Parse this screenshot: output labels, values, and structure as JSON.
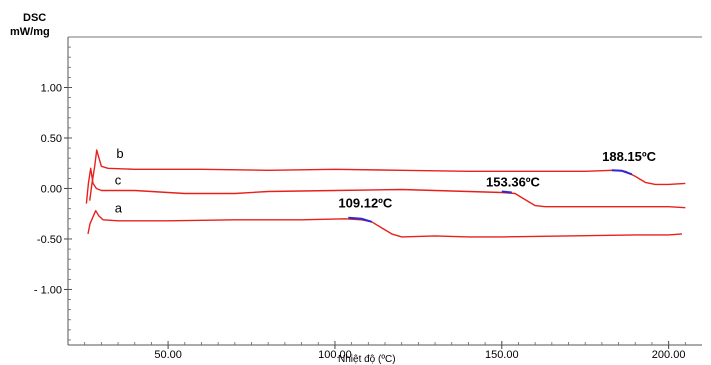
{
  "chart_data": {
    "type": "line",
    "ylabel_line1": "DSC",
    "ylabel_line2": "mW/mg",
    "xlabel": "Nhiệt độ (ºC)",
    "xlim": [
      20,
      210
    ],
    "ylim": [
      -1.55,
      1.5
    ],
    "x_ticks": [
      {
        "value": 50,
        "label": "50.00"
      },
      {
        "value": 100,
        "label": "100.00"
      },
      {
        "value": 150,
        "label": "150.00"
      },
      {
        "value": 200,
        "label": "200.00"
      }
    ],
    "y_ticks": [
      {
        "value": 1.0,
        "label": "1.00"
      },
      {
        "value": 0.5,
        "label": "0.50"
      },
      {
        "value": 0.0,
        "label": "0.00"
      },
      {
        "value": -0.5,
        "label": "-0.50"
      },
      {
        "value": -1.0,
        "label": "- 1.00"
      }
    ],
    "series": [
      {
        "name": "b",
        "color": "#e8201c",
        "points": [
          [
            26.5,
            -0.12
          ],
          [
            27.2,
            0.05
          ],
          [
            28.0,
            0.22
          ],
          [
            28.6,
            0.38
          ],
          [
            29.2,
            0.31
          ],
          [
            30.0,
            0.22
          ],
          [
            32,
            0.2
          ],
          [
            40,
            0.19
          ],
          [
            60,
            0.19
          ],
          [
            80,
            0.18
          ],
          [
            100,
            0.19
          ],
          [
            120,
            0.18
          ],
          [
            140,
            0.17
          ],
          [
            160,
            0.17
          ],
          [
            175,
            0.17
          ],
          [
            183,
            0.18
          ],
          [
            187,
            0.17
          ],
          [
            190,
            0.12
          ],
          [
            193,
            0.06
          ],
          [
            196,
            0.04
          ],
          [
            200,
            0.04
          ],
          [
            205,
            0.05
          ]
        ]
      },
      {
        "name": "c",
        "color": "#e8201c",
        "points": [
          [
            25.5,
            -0.15
          ],
          [
            26.1,
            0.05
          ],
          [
            26.8,
            0.2
          ],
          [
            27.5,
            0.05
          ],
          [
            28.5,
            0.0
          ],
          [
            30,
            -0.02
          ],
          [
            40,
            -0.02
          ],
          [
            55,
            -0.05
          ],
          [
            70,
            -0.05
          ],
          [
            80,
            -0.03
          ],
          [
            100,
            -0.02
          ],
          [
            120,
            -0.01
          ],
          [
            140,
            -0.03
          ],
          [
            150,
            -0.04
          ],
          [
            154,
            -0.05
          ],
          [
            156,
            -0.09
          ],
          [
            158,
            -0.13
          ],
          [
            160,
            -0.17
          ],
          [
            163,
            -0.18
          ],
          [
            180,
            -0.18
          ],
          [
            200,
            -0.18
          ],
          [
            205,
            -0.19
          ]
        ]
      },
      {
        "name": "a",
        "color": "#e8201c",
        "points": [
          [
            26.0,
            -0.45
          ],
          [
            26.6,
            -0.35
          ],
          [
            27.5,
            -0.28
          ],
          [
            28.3,
            -0.22
          ],
          [
            29.2,
            -0.27
          ],
          [
            30.5,
            -0.31
          ],
          [
            35,
            -0.32
          ],
          [
            50,
            -0.32
          ],
          [
            70,
            -0.31
          ],
          [
            90,
            -0.31
          ],
          [
            103,
            -0.3
          ],
          [
            108,
            -0.31
          ],
          [
            111,
            -0.33
          ],
          [
            114,
            -0.39
          ],
          [
            117,
            -0.45
          ],
          [
            120,
            -0.48
          ],
          [
            130,
            -0.47
          ],
          [
            140,
            -0.48
          ],
          [
            150,
            -0.48
          ],
          [
            170,
            -0.47
          ],
          [
            190,
            -0.46
          ],
          [
            200,
            -0.46
          ],
          [
            204,
            -0.45
          ]
        ]
      }
    ],
    "onset_segments": [
      {
        "points": [
          [
            183,
            0.18
          ],
          [
            186,
            0.175
          ],
          [
            189,
            0.14
          ]
        ],
        "color": "#2a2ad8"
      },
      {
        "points": [
          [
            150,
            -0.03
          ],
          [
            153,
            -0.04
          ]
        ],
        "color": "#2a2ad8"
      },
      {
        "points": [
          [
            104,
            -0.29
          ],
          [
            108,
            -0.3
          ],
          [
            111,
            -0.33
          ]
        ],
        "color": "#2a2ad8"
      }
    ],
    "curve_labels": [
      {
        "text": "b",
        "x": 34.5,
        "y": 0.3
      },
      {
        "text": "c",
        "x": 34.0,
        "y": 0.04
      },
      {
        "text": "a",
        "x": 34.0,
        "y": -0.24
      }
    ],
    "peak_labels": [
      {
        "text": "188.15ºC",
        "x": 188.15,
        "y": 0.27
      },
      {
        "text": "153.36ºC",
        "x": 153.36,
        "y": 0.02
      },
      {
        "text": "109.12ºC",
        "x": 109.12,
        "y": -0.19
      }
    ],
    "grid": false
  }
}
